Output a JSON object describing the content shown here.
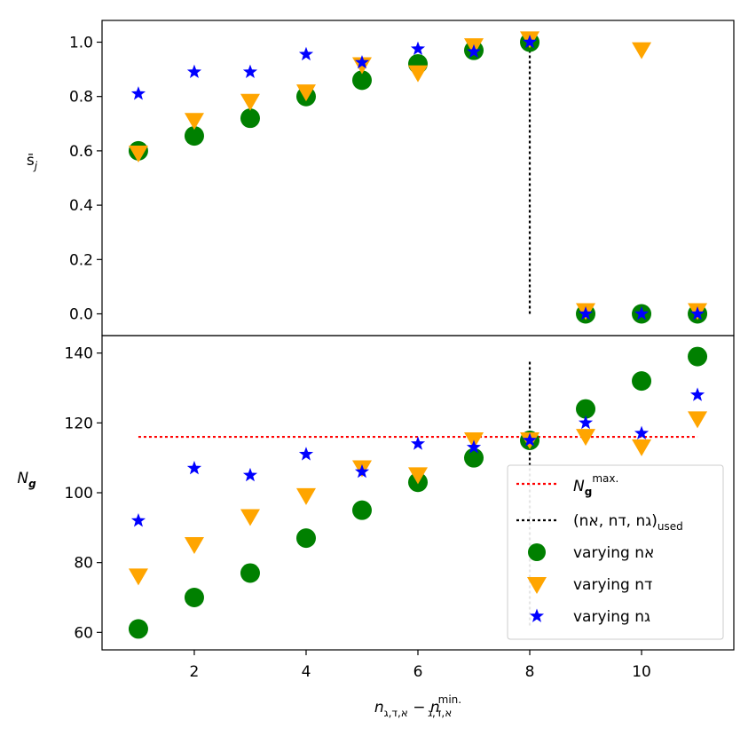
{
  "chart_data": [
    {
      "type": "scatter",
      "panel": "top",
      "ylabel_base": "s̄",
      "ylabel_sub": "j",
      "xlim": [
        0.35,
        11.65
      ],
      "ylim": [
        -0.08,
        1.08
      ],
      "yticks": [
        0.0,
        0.2,
        0.4,
        0.6,
        0.8,
        1.0
      ],
      "ytick_labels": [
        "0.0",
        "0.2",
        "0.4",
        "0.6",
        "0.8",
        "1.0"
      ],
      "series": [
        {
          "name": "varying nא",
          "marker": "circle",
          "color": "#008000",
          "x": [
            1,
            2,
            3,
            4,
            5,
            6,
            7,
            8,
            9,
            10,
            11
          ],
          "y": [
            0.6,
            0.655,
            0.72,
            0.8,
            0.86,
            0.92,
            0.97,
            1.0,
            0.0,
            0.0,
            0.0
          ]
        },
        {
          "name": "varying nד",
          "marker": "triangle-down",
          "color": "#ffa500",
          "x": [
            1,
            2,
            3,
            4,
            5,
            6,
            7,
            8,
            9,
            10,
            11
          ],
          "y": [
            0.59,
            0.71,
            0.78,
            0.815,
            0.915,
            0.885,
            0.985,
            1.01,
            0.01,
            0.97,
            0.01
          ]
        },
        {
          "name": "varying nג",
          "marker": "star",
          "color": "#0000ff",
          "x": [
            1,
            2,
            3,
            4,
            5,
            6,
            7,
            8,
            9,
            10,
            11
          ],
          "y": [
            0.81,
            0.89,
            0.89,
            0.955,
            0.925,
            0.975,
            0.965,
            1.0,
            0.0,
            0.0,
            0.0
          ]
        }
      ],
      "vline": {
        "x": 8,
        "y0": 0.0,
        "y1": 1.0,
        "color": "#000000",
        "style": "dotted"
      }
    },
    {
      "type": "scatter",
      "panel": "bottom",
      "ylabel_base": "N",
      "ylabel_sub": "g",
      "xlim": [
        0.35,
        11.65
      ],
      "ylim": [
        55,
        145
      ],
      "yticks": [
        60,
        80,
        100,
        120,
        140
      ],
      "ytick_labels": [
        "60",
        "80",
        "100",
        "120",
        "140"
      ],
      "xticks": [
        2,
        4,
        6,
        8,
        10
      ],
      "xtick_labels": [
        "2",
        "4",
        "6",
        "8",
        "10"
      ],
      "series": [
        {
          "name": "varying nא",
          "marker": "circle",
          "color": "#008000",
          "x": [
            1,
            2,
            3,
            4,
            5,
            6,
            7,
            8,
            9,
            10,
            11
          ],
          "y": [
            61,
            70,
            77,
            87,
            95,
            103,
            110,
            115,
            124,
            132,
            139
          ]
        },
        {
          "name": "varying nד",
          "marker": "triangle-down",
          "color": "#ffa500",
          "x": [
            1,
            2,
            3,
            4,
            5,
            6,
            7,
            8,
            9,
            10,
            11
          ],
          "y": [
            76,
            85,
            93,
            99,
            107,
            105,
            115,
            115,
            116,
            113,
            121
          ]
        },
        {
          "name": "varying nג",
          "marker": "star",
          "color": "#0000ff",
          "x": [
            1,
            2,
            3,
            4,
            5,
            6,
            7,
            8,
            9,
            10,
            11
          ],
          "y": [
            92,
            107,
            105,
            111,
            106,
            114,
            113,
            115,
            120,
            117,
            128
          ]
        }
      ],
      "hline": {
        "y": 116,
        "x0": 1,
        "x1": 11,
        "color": "#ff0000",
        "style": "dotted"
      },
      "vline": {
        "x": 8,
        "y0": 62,
        "y1": 138,
        "color": "#000000",
        "style": "dotted"
      }
    }
  ],
  "xlabel": {
    "base": "n",
    "sub": "א,ד,ג",
    "minus": " − ",
    "sub2": "א,ד,ג",
    "sup2": "min."
  },
  "legend": {
    "placement": "lower-right of bottom panel",
    "entries": [
      {
        "kind": "line",
        "color": "#ff0000",
        "label_base": "N",
        "label_sub": "g",
        "label_sup": "max."
      },
      {
        "kind": "line",
        "color": "#000000",
        "label": "(nא, nד, nג)",
        "label_sub": "used"
      },
      {
        "kind": "circle",
        "color": "#008000",
        "label": "varying nא"
      },
      {
        "kind": "triangle-down",
        "color": "#ffa500",
        "label": "varying nד"
      },
      {
        "kind": "star",
        "color": "#0000ff",
        "label": "varying nג"
      }
    ]
  }
}
